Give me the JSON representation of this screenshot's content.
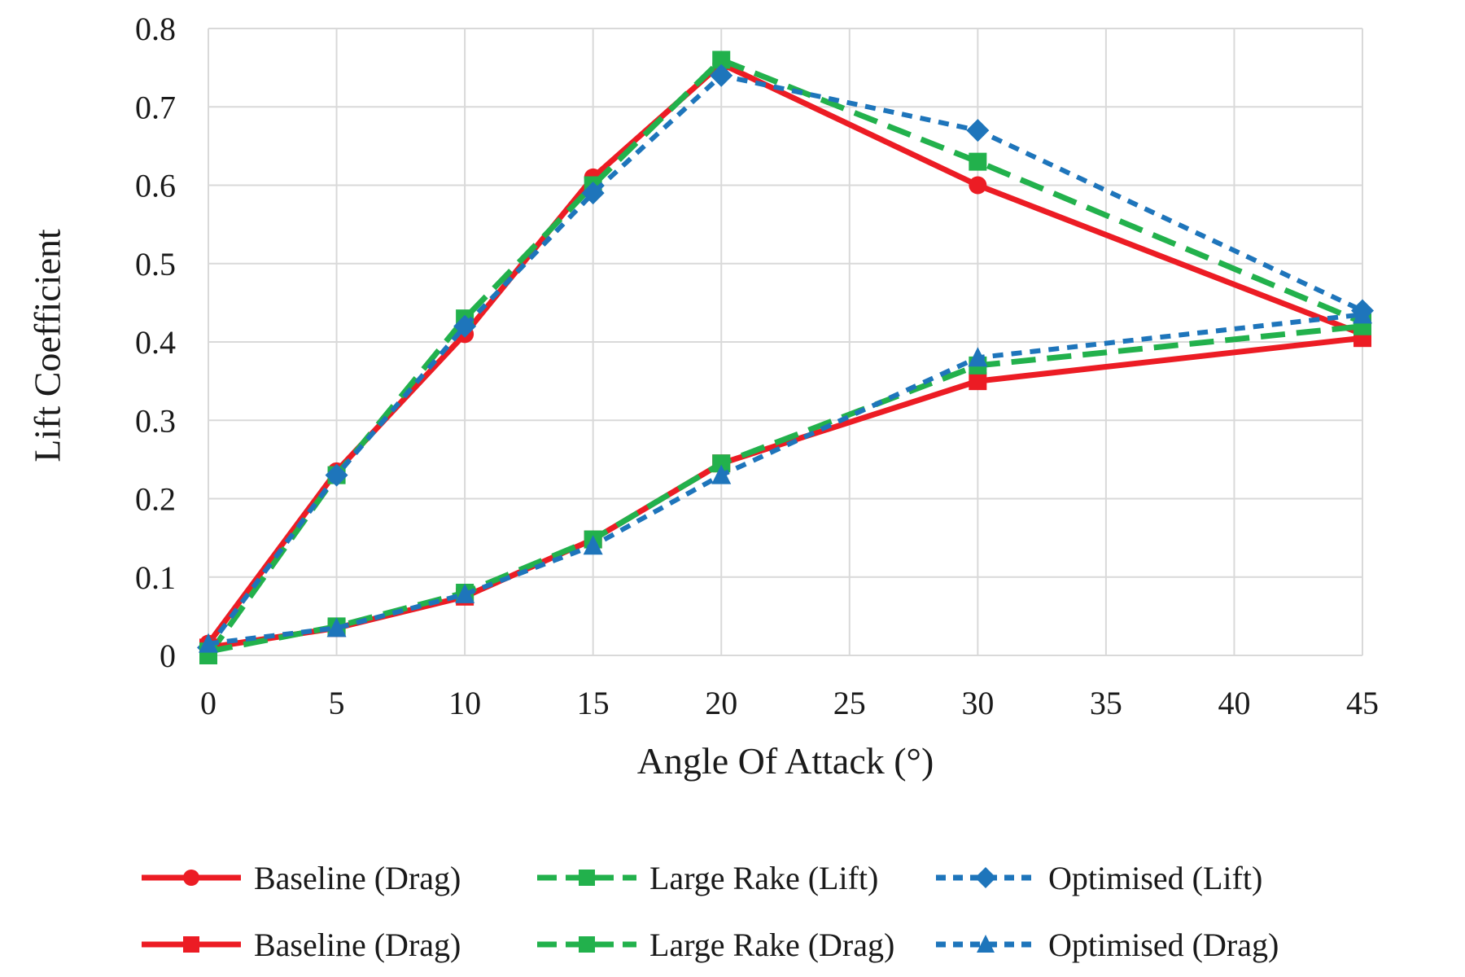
{
  "figure": {
    "background": "#ffffff",
    "text_color": "#1a1a1a"
  },
  "chart_data": {
    "type": "line",
    "title": "",
    "xlabel": "Angle Of Attack (°)",
    "ylabel": "Lift Coefficient",
    "xlim": [
      0,
      45
    ],
    "ylim": [
      0,
      0.8
    ],
    "grid": true,
    "grid_color": "#d9d9d9",
    "legend_position": "bottom",
    "x_ticks": [
      "0",
      "5",
      "10",
      "15",
      "20",
      "25",
      "30",
      "35",
      "40",
      "45"
    ],
    "x_tick_values": [
      0,
      5,
      10,
      15,
      20,
      25,
      30,
      35,
      40,
      45
    ],
    "y_ticks": [
      "0",
      "0.1",
      "0.2",
      "0.3",
      "0.4",
      "0.5",
      "0.6",
      "0.7",
      "0.8"
    ],
    "y_tick_values": [
      0,
      0.1,
      0.2,
      0.3,
      0.4,
      0.5,
      0.6,
      0.7,
      0.8
    ],
    "x": [
      0,
      5,
      10,
      15,
      20,
      30,
      45
    ],
    "series": [
      {
        "name": "Baseline (Drag)",
        "group": "lift",
        "color": "#ec1c24",
        "marker": "circle",
        "dash": "solid",
        "values": [
          0.015,
          0.235,
          0.41,
          0.61,
          0.755,
          0.6,
          0.41
        ]
      },
      {
        "name": "Large Rake (Lift)",
        "group": "lift",
        "color": "#22b14c",
        "marker": "square",
        "dash": "long",
        "values": [
          0.0,
          0.23,
          0.43,
          0.6,
          0.76,
          0.63,
          0.425
        ]
      },
      {
        "name": "Optimised (Lift)",
        "group": "lift",
        "color": "#1e75bb",
        "marker": "diamond",
        "dash": "short",
        "values": [
          0.01,
          0.23,
          0.42,
          0.59,
          0.74,
          0.67,
          0.44
        ]
      },
      {
        "name": "Baseline (Drag)",
        "group": "drag",
        "color": "#ec1c24",
        "marker": "square",
        "dash": "solid",
        "values": [
          0.01,
          0.035,
          0.075,
          0.148,
          0.245,
          0.35,
          0.405
        ]
      },
      {
        "name": "Large Rake (Drag)",
        "group": "drag",
        "color": "#22b14c",
        "marker": "square",
        "dash": "long",
        "values": [
          0.005,
          0.037,
          0.08,
          0.148,
          0.245,
          0.37,
          0.42
        ]
      },
      {
        "name": "Optimised (Drag)",
        "group": "drag",
        "color": "#1e75bb",
        "marker": "triangle",
        "dash": "short",
        "values": [
          0.015,
          0.035,
          0.078,
          0.14,
          0.23,
          0.38,
          0.435
        ]
      }
    ],
    "legend_rows": [
      [
        0,
        1,
        2
      ],
      [
        3,
        4,
        5
      ]
    ]
  }
}
